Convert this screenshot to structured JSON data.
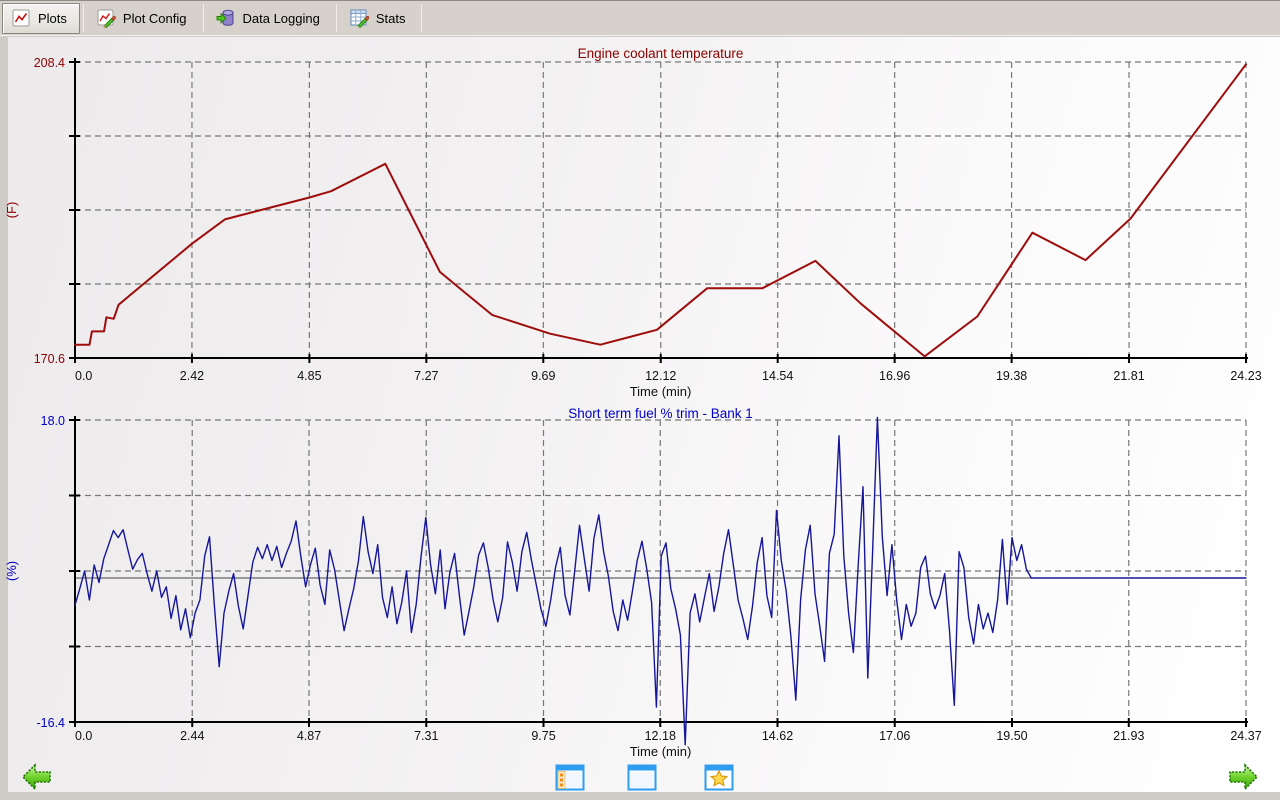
{
  "toolbar": {
    "tabs": [
      {
        "label": "Plots",
        "icon": "line-chart-icon",
        "active": true
      },
      {
        "label": "Plot Config",
        "icon": "plot-edit-icon",
        "active": false
      },
      {
        "label": "Data Logging",
        "icon": "database-arrow-icon",
        "active": false
      },
      {
        "label": "Stats",
        "icon": "stats-grid-icon",
        "active": false
      }
    ]
  },
  "bottom_bar": {
    "buttons": [
      "window-with-sidebar",
      "window-plain",
      "window-favorite"
    ]
  },
  "colors": {
    "coolant_line": "#9e0c0c",
    "coolant_text": "#8b0000",
    "fuel_line": "#16169a",
    "fuel_text": "#0000c8",
    "grid": "#777777",
    "axis": "#000000",
    "toolbar_bg": "#d6d2cb",
    "nav_arrow_green": "#55c016"
  },
  "chart_data": [
    {
      "type": "line",
      "title": "Engine coolant temperature",
      "ylabel": "(F)",
      "xlabel": "Time (min)",
      "ylim": [
        170.6,
        208.4
      ],
      "xlim": [
        0,
        24.23
      ],
      "xticks": [
        0.0,
        2.42,
        4.85,
        7.27,
        9.69,
        12.12,
        14.54,
        16.96,
        19.38,
        21.81,
        24.23
      ],
      "xtick_labels": [
        "0.0",
        "2.42",
        "4.85",
        "7.27",
        "9.69",
        "12.12",
        "14.54",
        "16.96",
        "19.38",
        "21.81",
        "24.23"
      ],
      "ytick_labels": {
        "top": "208.4",
        "bottom": "170.6"
      },
      "grid": true,
      "points": [
        [
          0.0,
          172.3
        ],
        [
          0.3,
          172.3
        ],
        [
          0.35,
          174.0
        ],
        [
          0.6,
          174.0
        ],
        [
          0.65,
          175.8
        ],
        [
          0.8,
          175.6
        ],
        [
          0.9,
          177.4
        ],
        [
          1.0,
          177.9
        ],
        [
          2.42,
          185.2
        ],
        [
          3.1,
          188.3
        ],
        [
          4.85,
          191.1
        ],
        [
          5.3,
          191.9
        ],
        [
          6.42,
          195.4
        ],
        [
          7.55,
          181.6
        ],
        [
          8.0,
          179.3
        ],
        [
          8.63,
          176.1
        ],
        [
          9.83,
          173.7
        ],
        [
          10.87,
          172.3
        ],
        [
          12.04,
          174.2
        ],
        [
          13.08,
          179.5
        ],
        [
          14.22,
          179.5
        ],
        [
          15.32,
          183.0
        ],
        [
          16.25,
          177.6
        ],
        [
          17.58,
          170.8
        ],
        [
          18.67,
          175.9
        ],
        [
          19.81,
          186.6
        ],
        [
          20.91,
          183.1
        ],
        [
          21.84,
          188.4
        ],
        [
          24.23,
          208.1
        ]
      ]
    },
    {
      "type": "line",
      "title": "Short term fuel % trim - Bank 1",
      "ylabel": "(%)",
      "xlabel": "Time (min)",
      "ylim": [
        -16.4,
        18.0
      ],
      "xlim": [
        0,
        24.37
      ],
      "xticks": [
        0.0,
        2.44,
        4.87,
        7.31,
        9.75,
        12.18,
        14.62,
        17.06,
        19.5,
        21.93,
        24.37
      ],
      "xtick_labels": [
        "0.0",
        "2.44",
        "4.87",
        "7.31",
        "9.75",
        "12.18",
        "14.62",
        "17.06",
        "19.50",
        "21.93",
        "24.37"
      ],
      "ytick_labels": {
        "top": "18.0",
        "bottom": "-16.4"
      },
      "grid": true,
      "zero_line": true,
      "series_sampled": {
        "t_start": 0.0,
        "dt": 0.1,
        "values": [
          -3.1,
          -1.2,
          0.8,
          -2.5,
          1.5,
          -0.5,
          2.2,
          3.8,
          5.4,
          4.6,
          5.5,
          3.2,
          1.0,
          2.1,
          2.8,
          0.5,
          -1.5,
          0.8,
          -2.2,
          -1.0,
          -4.6,
          -2.0,
          -5.9,
          -3.5,
          -6.8,
          -4.0,
          -2.5,
          2.5,
          4.7,
          -3.0,
          -10.1,
          -4.0,
          -1.5,
          0.5,
          -3.2,
          -5.8,
          -2.0,
          1.8,
          3.5,
          2.2,
          3.8,
          2.0,
          3.6,
          1.2,
          2.8,
          4.2,
          6.5,
          2.5,
          -1.0,
          1.5,
          3.4,
          -0.8,
          -3.0,
          3.2,
          1.0,
          -2.5,
          -6.0,
          -3.5,
          -1.2,
          2.0,
          7.0,
          3.0,
          0.5,
          3.8,
          -2.2,
          -4.5,
          -1.0,
          -5.2,
          -2.8,
          0.8,
          -6.2,
          -3.0,
          2.4,
          6.9,
          1.5,
          -1.8,
          3.2,
          -3.5,
          0.6,
          2.8,
          -2.0,
          -6.5,
          -3.8,
          -1.0,
          2.6,
          4.0,
          1.2,
          -2.4,
          -5.0,
          -2.2,
          4.1,
          1.8,
          -1.5,
          3.0,
          5.2,
          2.0,
          -0.8,
          -3.6,
          -5.5,
          -2.5,
          1.2,
          3.5,
          -2.0,
          -4.2,
          0.8,
          6.0,
          2.2,
          -1.5,
          4.5,
          7.2,
          3.0,
          0.2,
          -3.8,
          -6.0,
          -2.5,
          -4.8,
          -1.5,
          2.0,
          4.2,
          1.0,
          -2.8,
          -14.7,
          2.5,
          4.0,
          -1.2,
          -3.5,
          -6.5,
          -19.0,
          -4.0,
          -1.8,
          -5.0,
          -2.2,
          0.5,
          -3.8,
          -1.0,
          2.8,
          5.5,
          1.5,
          -2.5,
          -4.6,
          -7.0,
          -3.2,
          1.8,
          4.6,
          -2.0,
          -4.5,
          7.7,
          2.0,
          -1.5,
          -6.8,
          -13.9,
          -2.5,
          3.2,
          6.0,
          -1.8,
          -5.5,
          -9.5,
          2.8,
          5.0,
          16.2,
          2.5,
          -4.0,
          -8.5,
          1.5,
          10.4,
          -11.4,
          3.0,
          18.3,
          4.7,
          -2.0,
          3.8,
          -2.5,
          -7.0,
          -3.0,
          -5.5,
          -4.0,
          1.2,
          2.5,
          -1.8,
          -3.5,
          -2.0,
          0.5,
          -6.0,
          -14.5,
          3.0,
          1.2,
          -4.5,
          -7.5,
          -3.0,
          -5.8,
          -4.0,
          -6.2,
          -2.5,
          4.4,
          -3.0,
          4.6,
          2.0,
          3.8,
          1.0,
          0.0
        ]
      },
      "flat_tail": {
        "from": 19.9,
        "to": 24.37,
        "value": 0.0
      }
    }
  ]
}
